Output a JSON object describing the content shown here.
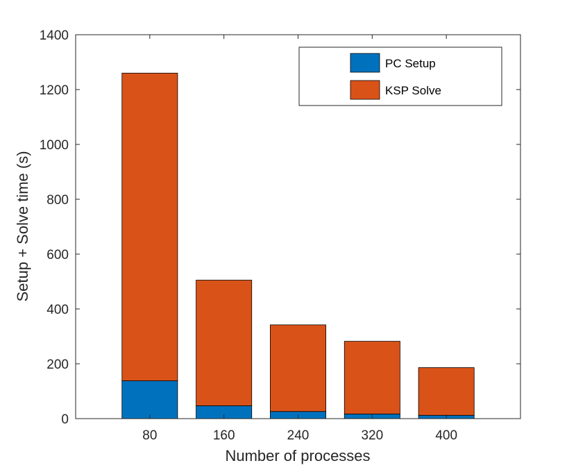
{
  "chart_data": {
    "type": "bar",
    "stacked": true,
    "categories": [
      "80",
      "160",
      "240",
      "320",
      "400"
    ],
    "series": [
      {
        "name": "PC Setup",
        "values": [
          138,
          47,
          26,
          17,
          12
        ],
        "color": "#0072BD"
      },
      {
        "name": "KSP Solve",
        "values": [
          1122,
          458,
          316,
          265,
          174
        ],
        "color": "#D95319"
      }
    ],
    "xlabel": "Number of processes",
    "ylabel": "Setup + Solve time (s)",
    "ylim": [
      0,
      1400
    ],
    "yticks": [
      0,
      200,
      400,
      600,
      800,
      1000,
      1200,
      1400
    ],
    "grid": false,
    "legend_position": "top-right"
  }
}
